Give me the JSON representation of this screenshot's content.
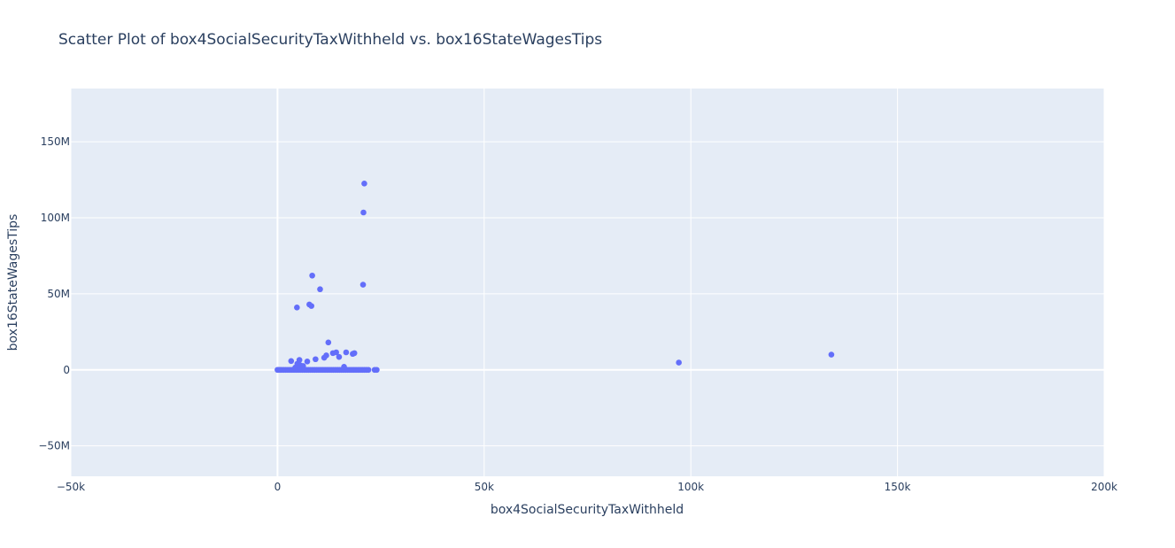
{
  "chart_data": {
    "type": "scatter",
    "title": "Scatter Plot of box4SocialSecurityTaxWithheld vs. box16StateWagesTips",
    "xlabel": "box4SocialSecurityTaxWithheld",
    "ylabel": "box16StateWagesTips",
    "xlim": [
      -50000,
      200000
    ],
    "ylim": [
      -70000000,
      185000000
    ],
    "x_ticks": [
      -50000,
      0,
      50000,
      100000,
      150000,
      200000
    ],
    "x_tick_labels": [
      "−50k",
      "0",
      "50k",
      "100k",
      "150k",
      "200k"
    ],
    "y_ticks": [
      -50000000,
      0,
      50000000,
      100000000,
      150000000
    ],
    "y_tick_labels": [
      "−50M",
      "0",
      "50M",
      "100M",
      "150M"
    ],
    "grid": true,
    "marker_color": "#636efa",
    "plot_bg": "#e5ecf6",
    "x": [
      0,
      300,
      600,
      1000,
      1500,
      2000,
      2500,
      3000,
      3500,
      4000,
      4500,
      5000,
      5500,
      6000,
      6500,
      7000,
      7500,
      8000,
      8500,
      9000,
      9500,
      10000,
      10500,
      11000,
      11500,
      12000,
      12500,
      13000,
      13500,
      14000,
      14500,
      15000,
      15500,
      16000,
      16500,
      17000,
      17500,
      18000,
      18500,
      19000,
      19500,
      20000,
      20500,
      21000,
      21500,
      22000,
      23500,
      24000,
      3300,
      4300,
      4800,
      5300,
      5500,
      6200,
      7200,
      9200,
      11300,
      11800,
      13400,
      14200,
      14900,
      16100,
      16600,
      18200,
      18600,
      4700,
      7700,
      8200,
      8400,
      10300,
      12300,
      20700,
      20800,
      21000,
      97100,
      134000
    ],
    "y": [
      0,
      0,
      0,
      0,
      0,
      0,
      0,
      0,
      0,
      0,
      0,
      0,
      0,
      0,
      0,
      0,
      0,
      0,
      0,
      0,
      0,
      0,
      0,
      0,
      0,
      0,
      0,
      0,
      0,
      0,
      0,
      0,
      0,
      0,
      0,
      0,
      0,
      0,
      0,
      0,
      0,
      0,
      0,
      0,
      0,
      0,
      0,
      0,
      5800000,
      1500000,
      4000000,
      6500000,
      3000000,
      2500000,
      5500000,
      7000000,
      8000000,
      9500000,
      11000000,
      11500000,
      8500000,
      2000000,
      11500000,
      10500000,
      11000000,
      41000000,
      43000000,
      42000000,
      62000000,
      53000000,
      18000000,
      56000000,
      103500000,
      122500000,
      4800000,
      10000000
    ]
  }
}
